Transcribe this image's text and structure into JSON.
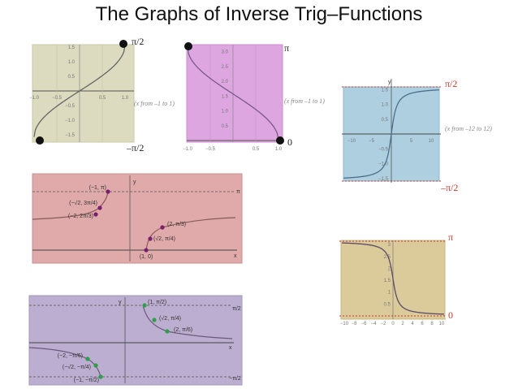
{
  "title": "The Graphs of Inverse Trig–Functions",
  "graph1": {
    "top_label": "π/2",
    "bottom_label": "–π/2",
    "range_note": "(x from –1 to 1)",
    "yticks": [
      "1.5",
      "1.0",
      "0.5",
      "−0.5",
      "−1.0",
      "−1.5"
    ],
    "xticks": [
      "−1.0",
      "−0.5",
      "0.5",
      "1.0"
    ],
    "bg": "#dcdbbf"
  },
  "graph2": {
    "top_label": "π",
    "bottom_label": "0",
    "range_note": "(x from –1 to 1)",
    "yticks": [
      "3.0",
      "2.5",
      "2.0",
      "1.5",
      "1.0",
      "0.5"
    ],
    "xticks": [
      "−1.0",
      "−0.5",
      "0.5",
      "1.0"
    ],
    "bg": "#dda6e0"
  },
  "graph3": {
    "top_label": "π/2",
    "bottom_label": "–π/2",
    "range_note": "(x from –12 to 12)",
    "axis_y": "y",
    "yticks": [
      "1.5",
      "1.0",
      "0.5",
      "−0.5",
      "−1.0",
      "−1.5"
    ],
    "xticks": [
      "−10",
      "−5",
      "5",
      "10"
    ],
    "bg": "#aecfe0"
  },
  "graph4": {
    "axis_y": "y",
    "axis_x": "x",
    "asymptote": "π",
    "points": [
      "(−1, π)",
      "(−√2, 3π/4)",
      "(−2, 2π/3)",
      "(2, π/3)",
      "(√2, π/4)",
      "(1, 0)"
    ],
    "bg": "#e0aaaa",
    "point_color": "#7a1f6e"
  },
  "graph5": {
    "top_label": "π",
    "bottom_label": "0",
    "yticks": [
      "3",
      "2.5",
      "2",
      "1.5",
      "1",
      "0.5"
    ],
    "xticks": [
      "−10",
      "−8",
      "−6",
      "−4",
      "−2",
      "0",
      "2",
      "4",
      "6",
      "8",
      "10"
    ],
    "bg": "#dccb9a"
  },
  "graph6": {
    "axis_y": "y",
    "axis_x": "x",
    "asymptote_top": "π/2",
    "asymptote_bottom": "−π/2",
    "points": [
      "(1, π/2)",
      "(√2, π/4)",
      "(2, π/6)",
      "(−2, −π/6)",
      "(−√2, −π/4)",
      "(−1, −π/2)"
    ],
    "bg": "#bcaed0",
    "point_color": "#2e9e4a"
  }
}
